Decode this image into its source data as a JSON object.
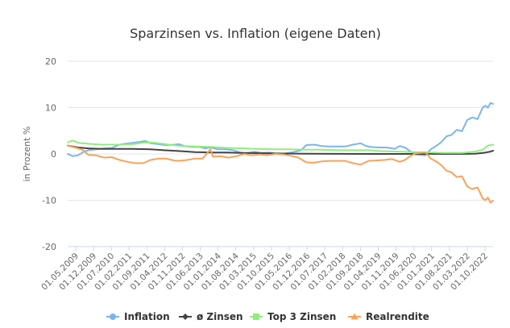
{
  "colors": {
    "inflation": "#7cb5ec",
    "zinsen": "#434348",
    "top3": "#90ed7d",
    "realrendite": "#f7a35c",
    "grid": "#e6e6e6"
  },
  "chart_data": {
    "type": "line",
    "title": "Sparzinsen vs. Inflation (eigene Daten)",
    "ylabel": "in Prozent %",
    "xlabel": "",
    "ylim": [
      -20,
      20
    ],
    "yticks": [
      20,
      10,
      0,
      -10,
      -20
    ],
    "grid": true,
    "legend_position": "bottom",
    "x_tick_labels": [
      "01.05.2009",
      "01.12.2009",
      "01.07.2010",
      "01.02.2011",
      "01.09.2011",
      "01.04.2012",
      "01.11.2012",
      "01.06.2013",
      "01.01.2014",
      "01.08.2014",
      "01.03.2015",
      "01.10.2015",
      "01.05.2016",
      "01.12.2016",
      "01.07.2017",
      "01.02.2018",
      "01.09.2018",
      "01.04.2019",
      "01.11.2019",
      "01.06.2020",
      "01.01.2021",
      "01.08.2021",
      "01.03.2022",
      "01.10.2022"
    ],
    "x_range": [
      "2009-05",
      "2023-01"
    ],
    "series": [
      {
        "name": "Inflation",
        "color_key": "inflation",
        "points": [
          [
            "2009-05",
            0.0
          ],
          [
            "2009-07",
            -0.5
          ],
          [
            "2009-09",
            -0.3
          ],
          [
            "2009-11",
            0.4
          ],
          [
            "2010-01",
            0.8
          ],
          [
            "2010-04",
            1.0
          ],
          [
            "2010-07",
            1.2
          ],
          [
            "2010-10",
            1.3
          ],
          [
            "2011-01",
            2.0
          ],
          [
            "2011-03",
            2.2
          ],
          [
            "2011-06",
            2.4
          ],
          [
            "2011-09",
            2.6
          ],
          [
            "2011-11",
            2.8
          ],
          [
            "2012-01",
            2.3
          ],
          [
            "2012-04",
            2.1
          ],
          [
            "2012-07",
            1.9
          ],
          [
            "2012-10",
            2.0
          ],
          [
            "2012-12",
            2.1
          ],
          [
            "2013-02",
            1.7
          ],
          [
            "2013-05",
            1.5
          ],
          [
            "2013-08",
            1.5
          ],
          [
            "2013-10",
            1.2
          ],
          [
            "2013-12",
            1.4
          ],
          [
            "2014-03",
            1.0
          ],
          [
            "2014-06",
            1.0
          ],
          [
            "2014-09",
            0.8
          ],
          [
            "2014-12",
            0.2
          ],
          [
            "2015-02",
            0.1
          ],
          [
            "2015-05",
            0.5
          ],
          [
            "2015-08",
            0.2
          ],
          [
            "2015-11",
            0.3
          ],
          [
            "2016-02",
            0.0
          ],
          [
            "2016-05",
            0.1
          ],
          [
            "2016-08",
            0.4
          ],
          [
            "2016-11",
            0.8
          ],
          [
            "2017-01",
            1.9
          ],
          [
            "2017-04",
            2.0
          ],
          [
            "2017-07",
            1.7
          ],
          [
            "2017-10",
            1.6
          ],
          [
            "2018-01",
            1.6
          ],
          [
            "2018-04",
            1.6
          ],
          [
            "2018-07",
            2.0
          ],
          [
            "2018-10",
            2.3
          ],
          [
            "2018-12",
            1.7
          ],
          [
            "2019-02",
            1.5
          ],
          [
            "2019-05",
            1.4
          ],
          [
            "2019-08",
            1.4
          ],
          [
            "2019-11",
            1.1
          ],
          [
            "2020-01",
            1.7
          ],
          [
            "2020-03",
            1.4
          ],
          [
            "2020-05",
            0.6
          ],
          [
            "2020-07",
            -0.1
          ],
          [
            "2020-09",
            -0.2
          ],
          [
            "2020-11",
            -0.3
          ],
          [
            "2021-01",
            1.0
          ],
          [
            "2021-03",
            1.7
          ],
          [
            "2021-05",
            2.5
          ],
          [
            "2021-07",
            3.8
          ],
          [
            "2021-09",
            4.1
          ],
          [
            "2021-11",
            5.2
          ],
          [
            "2022-01",
            4.9
          ],
          [
            "2022-03",
            7.3
          ],
          [
            "2022-05",
            7.9
          ],
          [
            "2022-07",
            7.5
          ],
          [
            "2022-09",
            10.0
          ],
          [
            "2022-10",
            10.4
          ],
          [
            "2022-11",
            10.0
          ],
          [
            "2022-12",
            11.0
          ],
          [
            "2023-01",
            10.8
          ]
        ]
      },
      {
        "name": "ø Zinsen",
        "color_key": "zinsen",
        "points": [
          [
            "2009-05",
            1.8
          ],
          [
            "2009-09",
            1.4
          ],
          [
            "2010-01",
            1.2
          ],
          [
            "2010-06",
            1.1
          ],
          [
            "2011-01",
            1.1
          ],
          [
            "2011-06",
            1.1
          ],
          [
            "2012-01",
            1.0
          ],
          [
            "2012-06",
            0.8
          ],
          [
            "2013-01",
            0.6
          ],
          [
            "2013-06",
            0.4
          ],
          [
            "2014-01",
            0.3
          ],
          [
            "2014-06",
            0.3
          ],
          [
            "2015-01",
            0.2
          ],
          [
            "2016-01",
            0.1
          ],
          [
            "2017-01",
            0.05
          ],
          [
            "2018-01",
            0.02
          ],
          [
            "2019-01",
            0.0
          ],
          [
            "2020-01",
            0.0
          ],
          [
            "2021-01",
            0.0
          ],
          [
            "2022-01",
            0.0
          ],
          [
            "2022-06",
            0.05
          ],
          [
            "2022-09",
            0.2
          ],
          [
            "2022-12",
            0.5
          ],
          [
            "2023-01",
            0.7
          ]
        ]
      },
      {
        "name": "Top 3 Zinsen",
        "color_key": "top3",
        "points": [
          [
            "2009-05",
            2.5
          ],
          [
            "2009-07",
            2.9
          ],
          [
            "2009-09",
            2.4
          ],
          [
            "2010-01",
            2.2
          ],
          [
            "2010-06",
            2.0
          ],
          [
            "2011-01",
            2.0
          ],
          [
            "2011-06",
            2.1
          ],
          [
            "2011-11",
            2.5
          ],
          [
            "2012-03",
            2.4
          ],
          [
            "2012-08",
            2.0
          ],
          [
            "2013-01",
            1.7
          ],
          [
            "2013-06",
            1.6
          ],
          [
            "2014-01",
            1.5
          ],
          [
            "2014-06",
            1.3
          ],
          [
            "2015-01",
            1.2
          ],
          [
            "2015-06",
            1.1
          ],
          [
            "2016-01",
            1.0
          ],
          [
            "2016-06",
            1.0
          ],
          [
            "2017-01",
            0.9
          ],
          [
            "2017-06",
            0.9
          ],
          [
            "2018-01",
            0.8
          ],
          [
            "2018-06",
            0.8
          ],
          [
            "2019-01",
            0.8
          ],
          [
            "2019-06",
            0.6
          ],
          [
            "2020-01",
            0.5
          ],
          [
            "2020-06",
            0.4
          ],
          [
            "2021-01",
            0.3
          ],
          [
            "2021-06",
            0.2
          ],
          [
            "2022-01",
            0.2
          ],
          [
            "2022-06",
            0.5
          ],
          [
            "2022-09",
            0.9
          ],
          [
            "2022-11",
            1.8
          ],
          [
            "2023-01",
            2.0
          ]
        ]
      },
      {
        "name": "Realrendite",
        "color_key": "realrendite",
        "points": [
          [
            "2009-05",
            1.8
          ],
          [
            "2009-07",
            1.5
          ],
          [
            "2009-09",
            1.2
          ],
          [
            "2009-11",
            0.8
          ],
          [
            "2010-01",
            -0.2
          ],
          [
            "2010-04",
            -0.3
          ],
          [
            "2010-07",
            -0.8
          ],
          [
            "2010-10",
            -0.7
          ],
          [
            "2011-01",
            -1.3
          ],
          [
            "2011-04",
            -1.7
          ],
          [
            "2011-07",
            -2.0
          ],
          [
            "2011-10",
            -2.0
          ],
          [
            "2012-01",
            -1.3
          ],
          [
            "2012-04",
            -1.0
          ],
          [
            "2012-07",
            -1.0
          ],
          [
            "2012-10",
            -1.4
          ],
          [
            "2012-12",
            -1.5
          ],
          [
            "2013-03",
            -1.3
          ],
          [
            "2013-06",
            -1.0
          ],
          [
            "2013-09",
            -1.0
          ],
          [
            "2013-12",
            1.0
          ],
          [
            "2014-01",
            -0.6
          ],
          [
            "2014-04",
            -0.5
          ],
          [
            "2014-07",
            -0.8
          ],
          [
            "2014-10",
            -0.5
          ],
          [
            "2015-01",
            0.0
          ],
          [
            "2015-04",
            -0.3
          ],
          [
            "2015-07",
            -0.1
          ],
          [
            "2015-10",
            -0.3
          ],
          [
            "2016-01",
            0.0
          ],
          [
            "2016-04",
            -0.1
          ],
          [
            "2016-07",
            -0.4
          ],
          [
            "2016-10",
            -0.8
          ],
          [
            "2017-01",
            -1.8
          ],
          [
            "2017-04",
            -1.9
          ],
          [
            "2017-07",
            -1.6
          ],
          [
            "2017-10",
            -1.5
          ],
          [
            "2018-01",
            -1.5
          ],
          [
            "2018-04",
            -1.5
          ],
          [
            "2018-07",
            -2.0
          ],
          [
            "2018-10",
            -2.3
          ],
          [
            "2019-01",
            -1.5
          ],
          [
            "2019-04",
            -1.4
          ],
          [
            "2019-07",
            -1.3
          ],
          [
            "2019-10",
            -1.1
          ],
          [
            "2020-01",
            -1.7
          ],
          [
            "2020-03",
            -1.3
          ],
          [
            "2020-05",
            -0.5
          ],
          [
            "2020-07",
            0.1
          ],
          [
            "2020-09",
            0.2
          ],
          [
            "2020-11",
            0.3
          ],
          [
            "2021-01",
            -1.0
          ],
          [
            "2021-03",
            -1.6
          ],
          [
            "2021-05",
            -2.4
          ],
          [
            "2021-07",
            -3.6
          ],
          [
            "2021-09",
            -4.0
          ],
          [
            "2021-11",
            -5.0
          ],
          [
            "2022-01",
            -4.8
          ],
          [
            "2022-03",
            -7.0
          ],
          [
            "2022-05",
            -7.6
          ],
          [
            "2022-07",
            -7.2
          ],
          [
            "2022-09",
            -9.6
          ],
          [
            "2022-10",
            -10.0
          ],
          [
            "2022-11",
            -9.4
          ],
          [
            "2022-12",
            -10.5
          ],
          [
            "2023-01",
            -10.1
          ]
        ]
      }
    ]
  }
}
